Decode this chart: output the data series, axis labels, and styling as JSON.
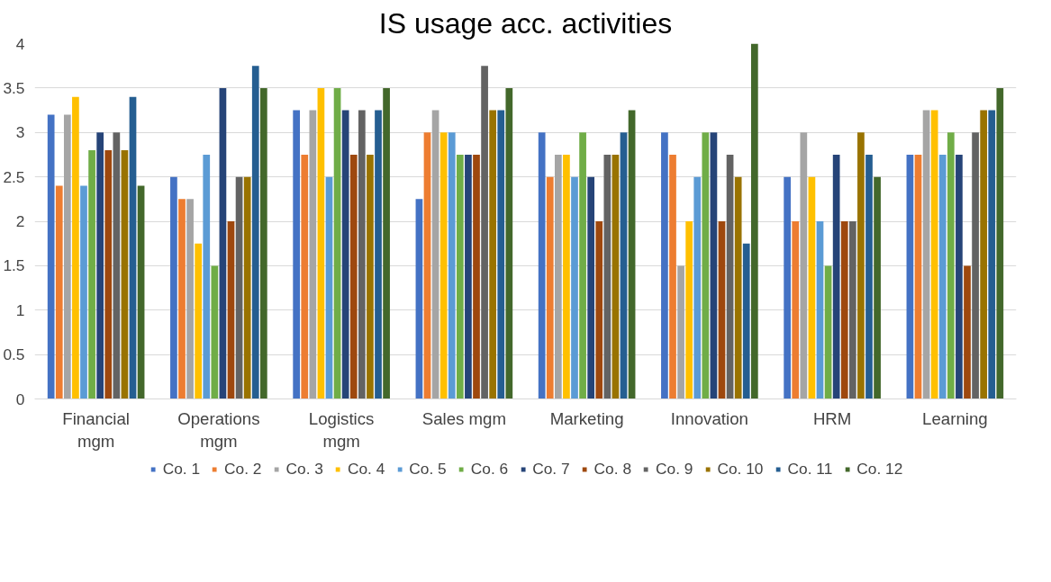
{
  "chart_data": {
    "type": "bar",
    "title": "IS usage acc. activities",
    "categories": [
      "Financial mgm",
      "Operations mgm",
      "Logistics mgm",
      "Sales mgm",
      "Marketing",
      "Innovation",
      "HRM",
      "Learning"
    ],
    "ylim": [
      0,
      4
    ],
    "yticks": [
      0,
      0.5,
      1,
      1.5,
      2,
      2.5,
      3,
      3.5,
      4
    ],
    "grid": "y",
    "legend": "bottom",
    "series": [
      {
        "name": "Co. 1",
        "color": "#4472c4",
        "values": [
          3.2,
          2.5,
          3.25,
          2.25,
          3.0,
          3.0,
          2.5,
          2.75
        ]
      },
      {
        "name": "Co. 2",
        "color": "#ed7d31",
        "values": [
          2.4,
          2.25,
          2.75,
          3.0,
          2.5,
          2.75,
          2.0,
          2.75
        ]
      },
      {
        "name": "Co. 3",
        "color": "#a5a5a5",
        "values": [
          3.2,
          2.25,
          3.25,
          3.25,
          2.75,
          1.5,
          3.0,
          3.25
        ]
      },
      {
        "name": "Co. 4",
        "color": "#ffc000",
        "values": [
          3.4,
          1.75,
          3.5,
          3.0,
          2.75,
          2.0,
          2.5,
          3.25
        ]
      },
      {
        "name": "Co. 5",
        "color": "#5b9bd5",
        "values": [
          2.4,
          2.75,
          2.5,
          3.0,
          2.5,
          2.5,
          2.0,
          2.75
        ]
      },
      {
        "name": "Co. 6",
        "color": "#70ad47",
        "values": [
          2.8,
          1.5,
          3.5,
          2.75,
          3.0,
          3.0,
          1.5,
          3.0
        ]
      },
      {
        "name": "Co. 7",
        "color": "#264478",
        "values": [
          3.0,
          3.5,
          3.25,
          2.75,
          2.5,
          3.0,
          2.75,
          2.75
        ]
      },
      {
        "name": "Co. 8",
        "color": "#9e480e",
        "values": [
          2.8,
          2.0,
          2.75,
          2.75,
          2.0,
          2.0,
          2.0,
          1.5
        ]
      },
      {
        "name": "Co. 9",
        "color": "#636363",
        "values": [
          3.0,
          2.5,
          3.25,
          3.75,
          2.75,
          2.75,
          2.0,
          3.0
        ]
      },
      {
        "name": "Co. 10",
        "color": "#997300",
        "values": [
          2.8,
          2.5,
          2.75,
          3.25,
          2.75,
          2.5,
          3.0,
          3.25
        ]
      },
      {
        "name": "Co. 11",
        "color": "#255e91",
        "values": [
          3.4,
          3.75,
          3.25,
          3.25,
          3.0,
          1.75,
          2.75,
          3.25
        ]
      },
      {
        "name": "Co. 12",
        "color": "#43682b",
        "values": [
          2.4,
          3.5,
          3.5,
          3.5,
          3.25,
          4.0,
          2.5,
          3.5
        ]
      }
    ]
  }
}
